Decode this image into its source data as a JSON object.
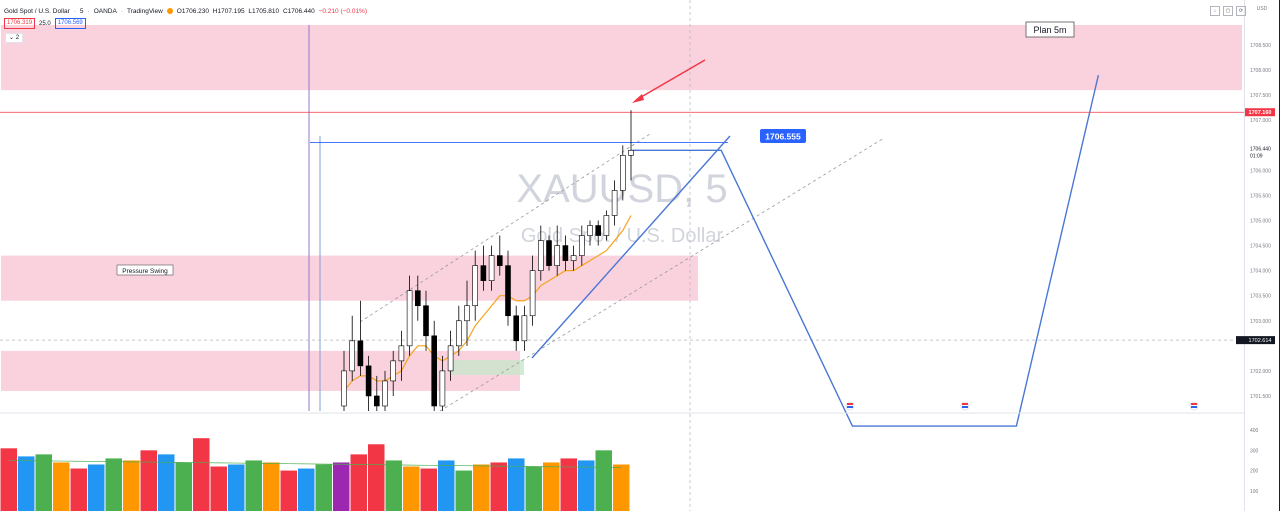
{
  "header": {
    "symbol_title": "Gold Spot / U.S. Dollar",
    "interval": "5",
    "exchange": "OANDA",
    "platform": "TradingView",
    "ohlc": {
      "open": "O1706.230",
      "high": "H1707.195",
      "low": "L1705.810",
      "close": "C1706.440",
      "change": "−0.210 (−0.01%)"
    },
    "sell_price": "1706.319",
    "spread": "25.0",
    "buy_price": "1706.569",
    "indicator_toggle": "2"
  },
  "watermark": {
    "symbol": "XAUUSD, 5",
    "name": "Gold Spot / U.S. Dollar"
  },
  "annotations": {
    "plan_label": "Plan 5m",
    "pressure_label": "Pressure Swing",
    "target_label": "1706.555"
  },
  "price_scale": {
    "currency": "USD",
    "current_price": "1707.160",
    "last_close": "1706.440",
    "countdown": "01:09",
    "crosshair_price": "1702.614",
    "tick_labels": [
      "1708.500",
      "1708.000",
      "1707.500",
      "1707.000",
      "1706.000",
      "1705.500",
      "1705.000",
      "1704.500",
      "1704.000",
      "1703.500",
      "1703.000",
      "1702.000",
      "1701.500"
    ]
  },
  "volume_scale": {
    "tick_labels": [
      "400",
      "300",
      "200",
      "100"
    ]
  },
  "colors": {
    "up": "#ffffff",
    "down": "#000000",
    "zone": "#f9c7d6",
    "current": "#f23645",
    "target": "#2962ff",
    "ema": "#f7a21b",
    "vol_green": "#4caf50",
    "vol_orange": "#ff9800",
    "vol_red": "#f23645",
    "vol_blue": "#2196f3",
    "vol_purple": "#9c27b0"
  },
  "chart_data": {
    "type": "candlestick",
    "title": "Gold Spot / U.S. Dollar",
    "interval": "5",
    "ylim": [
      1701.2,
      1708.9
    ],
    "candles": [
      {
        "o": 1701.3,
        "h": 1702.4,
        "l": 1701.2,
        "c": 1702.0
      },
      {
        "o": 1702.0,
        "h": 1703.1,
        "l": 1701.8,
        "c": 1702.6
      },
      {
        "o": 1702.6,
        "h": 1703.4,
        "l": 1701.9,
        "c": 1702.1
      },
      {
        "o": 1702.1,
        "h": 1702.3,
        "l": 1701.2,
        "c": 1701.5
      },
      {
        "o": 1701.5,
        "h": 1701.9,
        "l": 1701.2,
        "c": 1701.3
      },
      {
        "o": 1701.3,
        "h": 1702.0,
        "l": 1701.2,
        "c": 1701.8
      },
      {
        "o": 1701.8,
        "h": 1702.4,
        "l": 1701.5,
        "c": 1702.2
      },
      {
        "o": 1702.2,
        "h": 1702.8,
        "l": 1701.8,
        "c": 1702.5
      },
      {
        "o": 1702.5,
        "h": 1703.9,
        "l": 1702.3,
        "c": 1703.6
      },
      {
        "o": 1703.6,
        "h": 1703.9,
        "l": 1703.0,
        "c": 1703.3
      },
      {
        "o": 1703.3,
        "h": 1703.6,
        "l": 1702.4,
        "c": 1702.7
      },
      {
        "o": 1702.7,
        "h": 1703.0,
        "l": 1701.2,
        "c": 1701.3
      },
      {
        "o": 1701.3,
        "h": 1702.3,
        "l": 1701.2,
        "c": 1702.0
      },
      {
        "o": 1702.0,
        "h": 1702.8,
        "l": 1701.8,
        "c": 1702.5
      },
      {
        "o": 1702.5,
        "h": 1703.3,
        "l": 1702.3,
        "c": 1703.0
      },
      {
        "o": 1703.0,
        "h": 1703.8,
        "l": 1702.5,
        "c": 1703.3
      },
      {
        "o": 1703.3,
        "h": 1704.4,
        "l": 1703.0,
        "c": 1704.1
      },
      {
        "o": 1704.1,
        "h": 1704.5,
        "l": 1703.6,
        "c": 1703.8
      },
      {
        "o": 1703.8,
        "h": 1704.5,
        "l": 1703.6,
        "c": 1704.3
      },
      {
        "o": 1704.3,
        "h": 1704.7,
        "l": 1703.9,
        "c": 1704.1
      },
      {
        "o": 1704.1,
        "h": 1704.4,
        "l": 1702.9,
        "c": 1703.1
      },
      {
        "o": 1703.1,
        "h": 1703.3,
        "l": 1702.4,
        "c": 1702.6
      },
      {
        "o": 1702.6,
        "h": 1703.3,
        "l": 1702.4,
        "c": 1703.1
      },
      {
        "o": 1703.1,
        "h": 1704.3,
        "l": 1702.9,
        "c": 1704.0
      },
      {
        "o": 1704.0,
        "h": 1704.9,
        "l": 1703.8,
        "c": 1704.6
      },
      {
        "o": 1704.6,
        "h": 1704.7,
        "l": 1704.0,
        "c": 1704.1
      },
      {
        "o": 1704.1,
        "h": 1704.9,
        "l": 1703.9,
        "c": 1704.5
      },
      {
        "o": 1704.5,
        "h": 1704.7,
        "l": 1704.0,
        "c": 1704.2
      },
      {
        "o": 1704.2,
        "h": 1704.5,
        "l": 1704.0,
        "c": 1704.3
      },
      {
        "o": 1704.3,
        "h": 1704.9,
        "l": 1704.1,
        "c": 1704.7
      },
      {
        "o": 1704.7,
        "h": 1705.0,
        "l": 1704.5,
        "c": 1704.9
      },
      {
        "o": 1704.9,
        "h": 1705.0,
        "l": 1704.5,
        "c": 1704.7
      },
      {
        "o": 1704.7,
        "h": 1705.2,
        "l": 1704.6,
        "c": 1705.1
      },
      {
        "o": 1705.1,
        "h": 1705.8,
        "l": 1704.9,
        "c": 1705.6
      },
      {
        "o": 1705.6,
        "h": 1706.5,
        "l": 1705.4,
        "c": 1706.3
      },
      {
        "o": 1706.3,
        "h": 1707.2,
        "l": 1705.8,
        "c": 1706.4
      }
    ],
    "volume": [
      310,
      270,
      280,
      240,
      210,
      230,
      260,
      250,
      300,
      280,
      240,
      360,
      220,
      230,
      250,
      240,
      200,
      210,
      230,
      240,
      280,
      330,
      250,
      220,
      210,
      250,
      200,
      230,
      240,
      260,
      220,
      240,
      260,
      250,
      300,
      230
    ],
    "ema": [
      1701.6,
      1701.8,
      1701.9,
      1701.9,
      1701.8,
      1701.8,
      1701.9,
      1702.0,
      1702.3,
      1702.5,
      1702.5,
      1702.3,
      1702.2,
      1702.3,
      1702.4,
      1702.6,
      1702.9,
      1703.1,
      1703.3,
      1703.5,
      1703.5,
      1703.4,
      1703.4,
      1703.5,
      1703.7,
      1703.8,
      1703.9,
      1704.0,
      1704.0,
      1704.1,
      1704.2,
      1704.3,
      1704.4,
      1704.6,
      1704.8,
      1705.1
    ],
    "zones": [
      {
        "from": 1707.6,
        "to": 1708.9
      },
      {
        "from": 1703.4,
        "to": 1704.3
      },
      {
        "from": 1701.6,
        "to": 1702.4
      }
    ],
    "levels": {
      "current": 1707.16,
      "target": 1706.555,
      "crosshair": 1702.614
    },
    "projection": [
      {
        "i": 35,
        "p": 1706.4
      },
      {
        "i": 46,
        "p": 1706.4
      },
      {
        "i": 62,
        "p": 1700.9
      },
      {
        "i": 82,
        "p": 1700.9
      },
      {
        "i": 92,
        "p": 1707.9
      }
    ]
  }
}
